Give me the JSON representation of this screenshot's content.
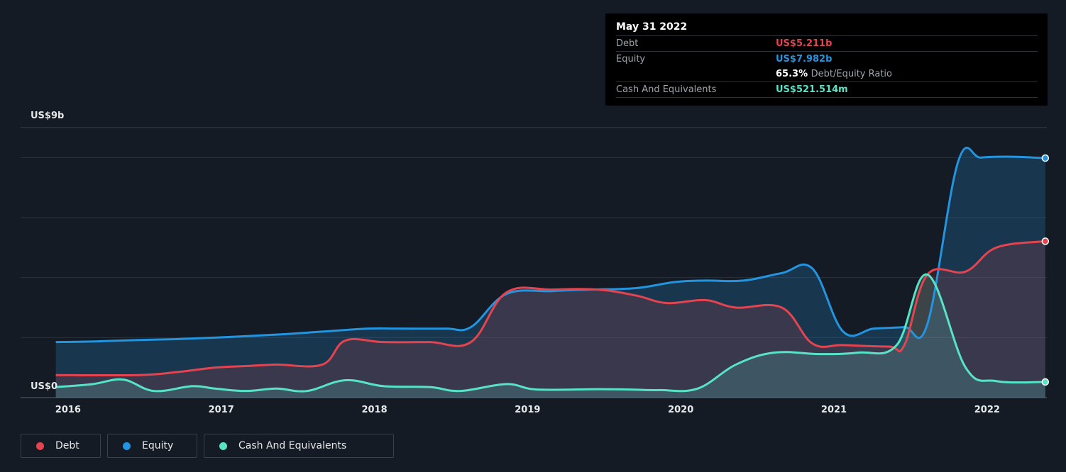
{
  "chart_data": {
    "type": "area",
    "y_axis_label": "US$9b",
    "y_axis_zero_label": "US$0",
    "ylim": [
      0,
      9
    ],
    "unit": "US$ billions",
    "x_ticks": [
      "2016",
      "2017",
      "2018",
      "2019",
      "2020",
      "2021",
      "2022"
    ],
    "x_range": [
      2015.73,
      2022.43
    ],
    "grid": true,
    "series": [
      {
        "name": "Debt",
        "color": "#e4444f",
        "points": [
          [
            2015.96,
            0.75
          ],
          [
            2016.5,
            0.75
          ],
          [
            2016.75,
            0.85
          ],
          [
            2017.0,
            1.0
          ],
          [
            2017.2,
            1.05
          ],
          [
            2017.4,
            1.1
          ],
          [
            2017.7,
            1.1
          ],
          [
            2017.85,
            1.9
          ],
          [
            2018.1,
            1.85
          ],
          [
            2018.4,
            1.85
          ],
          [
            2018.67,
            1.85
          ],
          [
            2018.9,
            3.5
          ],
          [
            2019.2,
            3.6
          ],
          [
            2019.5,
            3.6
          ],
          [
            2019.75,
            3.4
          ],
          [
            2019.95,
            3.15
          ],
          [
            2020.2,
            3.25
          ],
          [
            2020.4,
            3.0
          ],
          [
            2020.7,
            3.0
          ],
          [
            2020.9,
            1.8
          ],
          [
            2021.1,
            1.75
          ],
          [
            2021.4,
            1.7
          ],
          [
            2021.5,
            1.75
          ],
          [
            2021.65,
            4.1
          ],
          [
            2021.9,
            4.2
          ],
          [
            2022.1,
            5.0
          ],
          [
            2022.42,
            5.211
          ]
        ]
      },
      {
        "name": "Equity",
        "color": "#2394df",
        "points": [
          [
            2015.96,
            1.85
          ],
          [
            2016.2,
            1.87
          ],
          [
            2016.5,
            1.92
          ],
          [
            2016.75,
            1.95
          ],
          [
            2017.0,
            2.0
          ],
          [
            2017.4,
            2.1
          ],
          [
            2017.7,
            2.2
          ],
          [
            2018.0,
            2.3
          ],
          [
            2018.2,
            2.3
          ],
          [
            2018.5,
            2.3
          ],
          [
            2018.67,
            2.35
          ],
          [
            2018.9,
            3.45
          ],
          [
            2019.2,
            3.55
          ],
          [
            2019.45,
            3.6
          ],
          [
            2019.75,
            3.65
          ],
          [
            2020.0,
            3.85
          ],
          [
            2020.2,
            3.9
          ],
          [
            2020.45,
            3.9
          ],
          [
            2020.7,
            4.15
          ],
          [
            2020.9,
            4.3
          ],
          [
            2021.1,
            2.2
          ],
          [
            2021.3,
            2.3
          ],
          [
            2021.5,
            2.35
          ],
          [
            2021.65,
            2.45
          ],
          [
            2021.85,
            7.85
          ],
          [
            2022.0,
            8.0
          ],
          [
            2022.2,
            8.03
          ],
          [
            2022.42,
            7.982
          ]
        ]
      },
      {
        "name": "Cash And Equivalents",
        "color": "#58e3c7",
        "points": [
          [
            2015.96,
            0.35
          ],
          [
            2016.2,
            0.45
          ],
          [
            2016.4,
            0.6
          ],
          [
            2016.6,
            0.22
          ],
          [
            2016.85,
            0.38
          ],
          [
            2017.0,
            0.3
          ],
          [
            2017.2,
            0.22
          ],
          [
            2017.4,
            0.3
          ],
          [
            2017.6,
            0.22
          ],
          [
            2017.85,
            0.58
          ],
          [
            2018.1,
            0.38
          ],
          [
            2018.4,
            0.35
          ],
          [
            2018.6,
            0.22
          ],
          [
            2018.9,
            0.45
          ],
          [
            2019.1,
            0.27
          ],
          [
            2019.5,
            0.28
          ],
          [
            2019.7,
            0.27
          ],
          [
            2019.9,
            0.25
          ],
          [
            2020.15,
            0.3
          ],
          [
            2020.4,
            1.1
          ],
          [
            2020.65,
            1.5
          ],
          [
            2020.95,
            1.45
          ],
          [
            2021.2,
            1.5
          ],
          [
            2021.45,
            1.75
          ],
          [
            2021.65,
            4.1
          ],
          [
            2021.9,
            1.0
          ],
          [
            2022.1,
            0.55
          ],
          [
            2022.42,
            0.5215
          ]
        ]
      }
    ],
    "tooltip": {
      "date": "May 31 2022",
      "debt_label": "Debt",
      "debt_value": "US$5.211b",
      "equity_label": "Equity",
      "equity_value": "US$7.982b",
      "ratio_value": "65.3%",
      "ratio_label": "Debt/Equity Ratio",
      "cash_label": "Cash And Equivalents",
      "cash_value": "US$521.514m"
    },
    "legend": [
      "Debt",
      "Equity",
      "Cash And Equivalents"
    ]
  }
}
